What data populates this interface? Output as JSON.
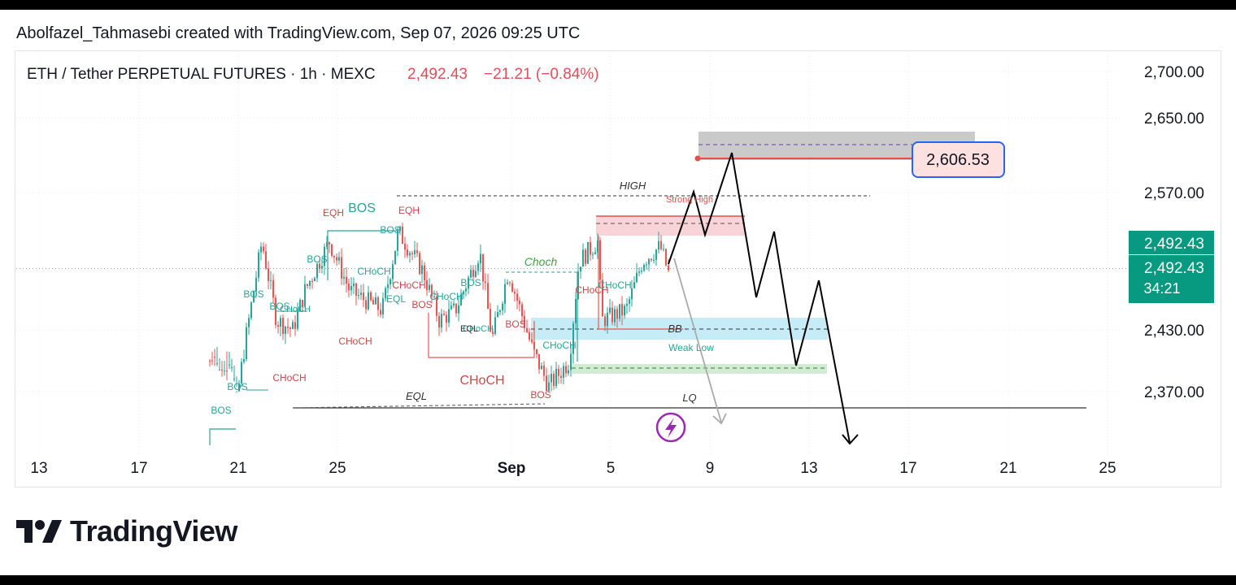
{
  "credit": "Abolfazel_Tahmasebi created with TradingView.com, Sep 07, 2026 09:25 UTC",
  "brand": "TradingView",
  "colors": {
    "up": "#26a69a",
    "down": "#ef5350",
    "label_bg": "#089981",
    "target_box_bg": "#fde0e0",
    "target_box_border": "#2962ff"
  },
  "chart_data": {
    "type": "candlestick",
    "legend": {
      "symbol": "ETH / Tether PERPETUAL FUTURES · 1h · MEXC",
      "price": "2,492.43",
      "change": "−21.21 (−0.84%)"
    },
    "y_ticks": [
      "2,700.00",
      "2,650.00",
      "2,570.00",
      "2,430.00",
      "2,370.00"
    ],
    "y_tick_values": [
      2700,
      2650,
      2570,
      2430,
      2370
    ],
    "x_ticks": [
      "13",
      "17",
      "21",
      "25",
      "Sep",
      "5",
      "9",
      "13",
      "17",
      "21",
      "25"
    ],
    "price_labels": {
      "last": "2,492.43",
      "countdown_price": "2,492.43",
      "countdown": "34:21"
    },
    "target_label": "2,606.53",
    "target_value": 2606.53,
    "annotations": {
      "high": "HIGH",
      "strong_high": "Strong High",
      "choch": "Choch",
      "bb": "BB",
      "weak_low": "Weak Low",
      "eql": "EQL",
      "lq": "LQ",
      "eqh": "EQH",
      "bos": "BOS",
      "choch_caps": "CHoCH",
      "eql_small": "EQL"
    }
  }
}
